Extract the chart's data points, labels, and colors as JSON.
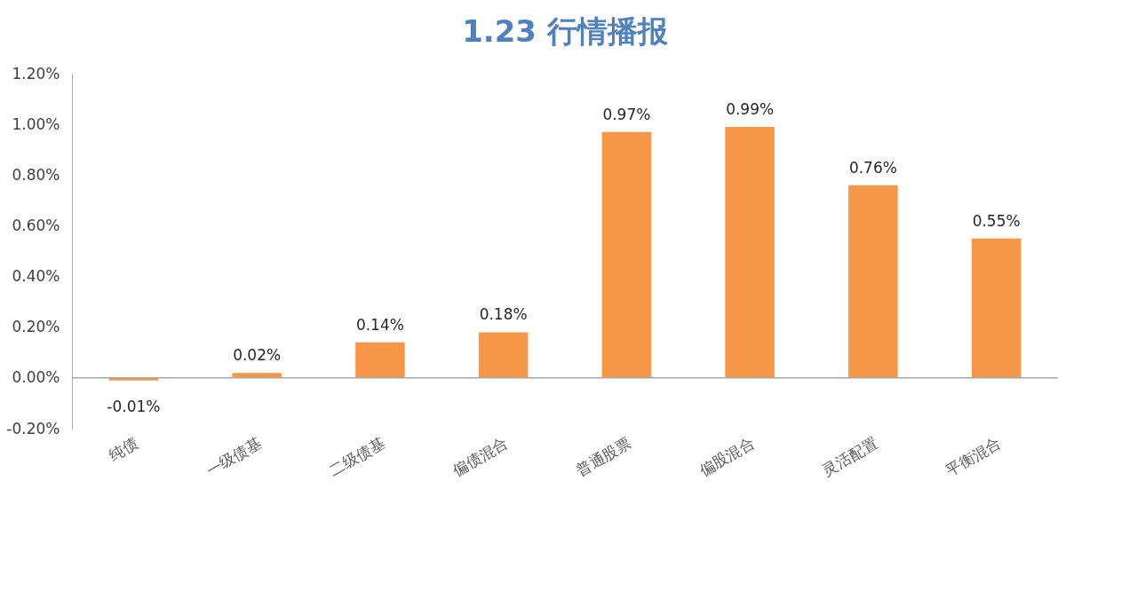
{
  "chart_data": {
    "type": "bar",
    "title": "1.23 行情播报",
    "categories": [
      "纯债",
      "一级债基",
      "二级债基",
      "偏债混合",
      "普通股票",
      "偏股混合",
      "灵活配置",
      "平衡混合"
    ],
    "values": [
      -0.01,
      0.02,
      0.14,
      0.18,
      0.97,
      0.99,
      0.76,
      0.55
    ],
    "value_labels": [
      "-0.01%",
      "0.02%",
      "0.14%",
      "0.18%",
      "0.97%",
      "0.99%",
      "0.76%",
      "0.55%"
    ],
    "color": "#f79646",
    "ylim": [
      -0.2,
      1.2
    ],
    "yticks": [
      {
        "value": -0.2,
        "label": "-0.20%"
      },
      {
        "value": 0,
        "label": "0.00%"
      },
      {
        "value": 0.2,
        "label": "0.20%"
      },
      {
        "value": 0.4,
        "label": "0.40%"
      },
      {
        "value": 0.6,
        "label": "0.60%"
      },
      {
        "value": 0.8,
        "label": "0.80%"
      },
      {
        "value": 1.0,
        "label": "1.00%"
      },
      {
        "value": 1.2,
        "label": "1.20%"
      }
    ],
    "legend": false
  }
}
